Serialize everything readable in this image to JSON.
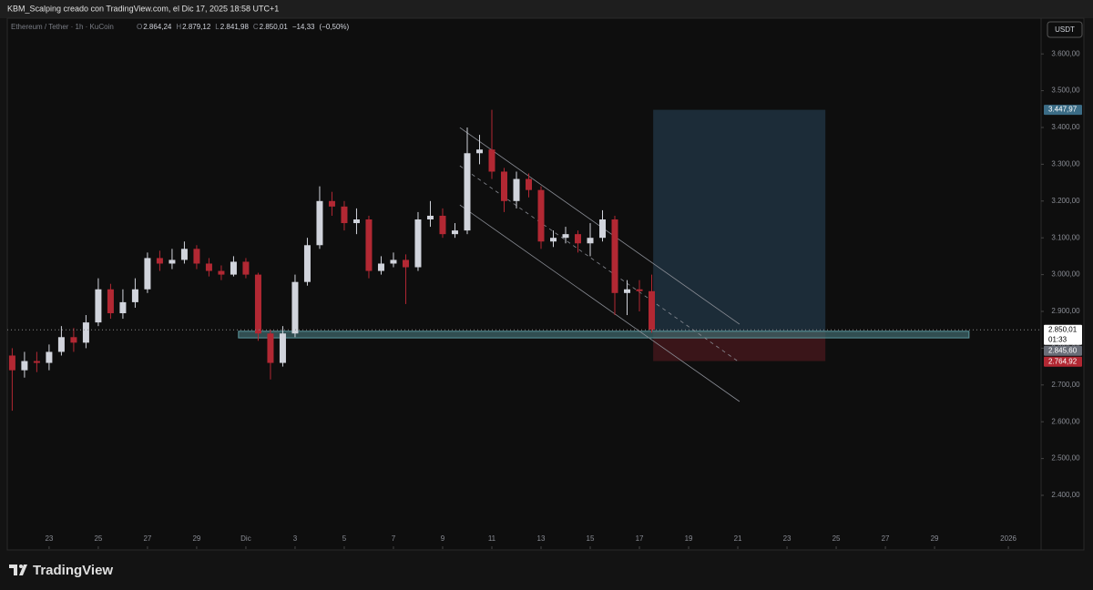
{
  "attribution": "KBM_Scalping creado con TradingView.com, el Dic 17, 2025 18:58 UTC+1",
  "brand": "TradingView",
  "chart_data": {
    "type": "candlestick",
    "title": "Ethereum / Tether · 1h · KuCoin",
    "currency": "USDT",
    "legend": [
      {
        "key": "O",
        "value": 2864.24,
        "label": "2.864,24"
      },
      {
        "key": "H",
        "value": 2879.12,
        "label": "2.879,12"
      },
      {
        "key": "L",
        "value": 2841.98,
        "label": "2.841,98"
      },
      {
        "key": "C",
        "value": 2850.01,
        "label": "2.850,01"
      },
      {
        "key": "",
        "value": -14.33,
        "label": "−14,33"
      },
      {
        "key": "",
        "value": -0.5,
        "label": "(−0,50%)"
      }
    ],
    "up_color": "#d1d4dc",
    "down_color": "#b22833",
    "xlim": [
      -9.7,
      32.33
    ],
    "ylim": [
      2254,
      3697
    ],
    "xticks": [
      {
        "value": -8,
        "label": "23"
      },
      {
        "value": -6,
        "label": "25"
      },
      {
        "value": -4,
        "label": "27"
      },
      {
        "value": -2,
        "label": "29"
      },
      {
        "value": 0,
        "label": "Dic"
      },
      {
        "value": 2,
        "label": "3"
      },
      {
        "value": 4,
        "label": "5"
      },
      {
        "value": 6,
        "label": "7"
      },
      {
        "value": 8,
        "label": "9"
      },
      {
        "value": 10,
        "label": "11"
      },
      {
        "value": 12,
        "label": "13"
      },
      {
        "value": 14,
        "label": "15"
      },
      {
        "value": 16,
        "label": "17"
      },
      {
        "value": 18,
        "label": "19"
      },
      {
        "value": 20,
        "label": "21"
      },
      {
        "value": 22,
        "label": "23"
      },
      {
        "value": 24,
        "label": "25"
      },
      {
        "value": 26,
        "label": "27"
      },
      {
        "value": 28,
        "label": "29"
      },
      {
        "value": 31,
        "label": "2026"
      }
    ],
    "yticks": [
      {
        "value": 2400,
        "label": "2.400,00"
      },
      {
        "value": 2500,
        "label": "2.500,00"
      },
      {
        "value": 2600,
        "label": "2.600,00"
      },
      {
        "value": 2700,
        "label": "2.700,00"
      },
      {
        "value": 2800,
        "label": "2.800,00"
      },
      {
        "value": 2900,
        "label": "2.900,00"
      },
      {
        "value": 3000,
        "label": "3.000,00"
      },
      {
        "value": 3100,
        "label": "3.100,00"
      },
      {
        "value": 3200,
        "label": "3.200,00"
      },
      {
        "value": 3300,
        "label": "3.300,00"
      },
      {
        "value": 3400,
        "label": "3.400,00"
      },
      {
        "value": 3500,
        "label": "3.500,00"
      },
      {
        "value": 3600,
        "label": "3.600,00"
      }
    ],
    "x": [
      -9.5,
      -9,
      -8.5,
      -8,
      -7.5,
      -7,
      -6.5,
      -6,
      -5.5,
      -5,
      -4.5,
      -4,
      -3.5,
      -3,
      -2.5,
      -2,
      -1.5,
      -1,
      -0.5,
      0,
      0.5,
      1,
      1.5,
      2,
      2.5,
      3,
      3.5,
      4,
      4.5,
      5,
      5.5,
      6,
      6.5,
      7,
      7.5,
      8,
      8.5,
      9,
      9.5,
      10,
      10.5,
      11,
      11.5,
      12,
      12.5,
      13,
      13.5,
      14,
      14.5,
      15,
      15.5,
      16,
      16.5
    ],
    "open": [
      2780,
      2740,
      2765,
      2760,
      2790,
      2830,
      2815,
      2870,
      2960,
      2895,
      2925,
      2960,
      3045,
      3030,
      3040,
      3070,
      3030,
      3010,
      3000,
      3035,
      3000,
      2840,
      2760,
      2840,
      2980,
      3080,
      3200,
      3185,
      3140,
      3150,
      3010,
      3030,
      3040,
      3020,
      3150,
      3160,
      3110,
      3120,
      3330,
      3340,
      3280,
      3200,
      3260,
      3230,
      3090,
      3100,
      3110,
      3085,
      3100,
      3150,
      2950,
      2960,
      2955
    ],
    "high": [
      2800,
      2790,
      2790,
      2810,
      2860,
      2855,
      2890,
      2990,
      2975,
      2960,
      2990,
      3060,
      3065,
      3070,
      3090,
      3080,
      3045,
      3025,
      3050,
      3045,
      3005,
      2850,
      2860,
      3000,
      3100,
      3240,
      3225,
      3200,
      3180,
      3160,
      3050,
      3060,
      3055,
      3170,
      3200,
      3180,
      3140,
      3400,
      3380,
      3448,
      3290,
      3280,
      3275,
      3240,
      3120,
      3130,
      3120,
      3140,
      3175,
      3160,
      2985,
      2985,
      3000
    ],
    "low": [
      2630,
      2720,
      2735,
      2740,
      2780,
      2790,
      2800,
      2860,
      2880,
      2880,
      2910,
      2950,
      3010,
      3015,
      3030,
      3015,
      2995,
      2985,
      2995,
      2990,
      2820,
      2715,
      2750,
      2830,
      2970,
      3070,
      3160,
      3120,
      3110,
      2990,
      3000,
      3020,
      2920,
      3010,
      3130,
      3100,
      3100,
      3110,
      3300,
      3260,
      3170,
      3180,
      3210,
      3070,
      3075,
      3085,
      3060,
      3050,
      3090,
      2890,
      2890,
      2900,
      2842
    ],
    "close": [
      2740,
      2765,
      2760,
      2790,
      2830,
      2815,
      2870,
      2960,
      2895,
      2925,
      2960,
      3045,
      3030,
      3040,
      3070,
      3030,
      3010,
      3000,
      3035,
      3000,
      2840,
      2760,
      2840,
      2980,
      3080,
      3200,
      3185,
      3140,
      3150,
      3010,
      3030,
      3040,
      3020,
      3150,
      3160,
      3110,
      3120,
      3330,
      3340,
      3280,
      3200,
      3260,
      3230,
      3090,
      3100,
      3110,
      3085,
      3100,
      3150,
      2950,
      2960,
      2955,
      2850.01
    ],
    "zone": {
      "x": [
        -0.3,
        29.4
      ],
      "y": [
        2828,
        2846
      ]
    },
    "position": {
      "x": [
        16.56,
        23.56
      ],
      "entry": 2845.6,
      "target": 3447.97,
      "stop": 2764.92
    },
    "channel": [
      {
        "x": [
          8.7,
          20.07
        ],
        "y": [
          3399.6,
          2865.2
        ],
        "dashed": false
      },
      {
        "x": [
          8.7,
          20.07
        ],
        "y": [
          3295.7,
          2761.3
        ],
        "dashed": true
      },
      {
        "x": [
          8.7,
          20.07
        ],
        "y": [
          3189.3,
          2655
        ],
        "dashed": false
      }
    ],
    "price_tags": [
      {
        "value": 3447.97,
        "label": "3.447,97",
        "color": "#3b6c86",
        "text_color": "#ffffff"
      },
      {
        "value": 2850.01,
        "label": "2.850,01",
        "countdown": "01:33",
        "color": "#ffffff",
        "text_color": "#000000"
      },
      {
        "value": 2845.6,
        "label": "2.845,60",
        "color": "#6a6e78",
        "text_color": "#ffffff"
      },
      {
        "value": 2764.92,
        "label": "2.764,92",
        "color": "#b22833",
        "text_color": "#ffffff"
      }
    ]
  }
}
